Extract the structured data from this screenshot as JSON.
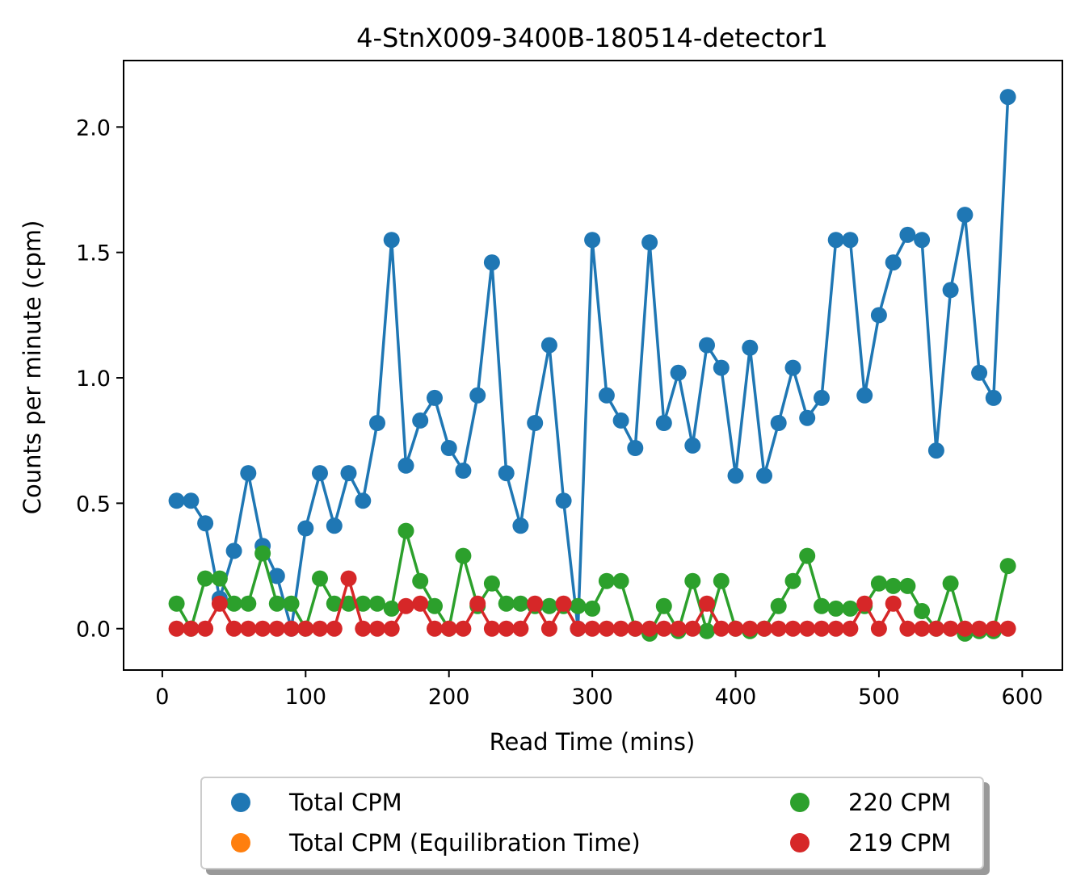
{
  "chart_data": {
    "type": "scatter",
    "title": "4-StnX009-3400B-180514-detector1",
    "xlabel": "Read Time (mins)",
    "ylabel": "Counts per minute (cpm)",
    "xlim": [
      -27,
      628
    ],
    "ylim": [
      -0.165,
      2.265
    ],
    "xticks": [
      "0",
      "100",
      "200",
      "300",
      "400",
      "500",
      "600"
    ],
    "yticks": [
      "0.0",
      "0.5",
      "1.0",
      "1.5",
      "2.0"
    ],
    "grid": false,
    "legend_placement": "below plot, two columns, with shadow",
    "x": [
      10,
      20,
      30,
      40,
      50,
      60,
      70,
      80,
      90,
      100,
      110,
      120,
      130,
      140,
      150,
      160,
      170,
      180,
      190,
      200,
      210,
      220,
      230,
      240,
      250,
      260,
      270,
      280,
      290,
      300,
      310,
      320,
      330,
      340,
      350,
      360,
      370,
      380,
      390,
      400,
      410,
      420,
      430,
      440,
      450,
      460,
      470,
      480,
      490,
      500,
      510,
      520,
      530,
      540,
      550,
      560,
      570,
      580,
      590
    ],
    "series": [
      {
        "name": "Total CPM",
        "color": "#1f77b4",
        "line": true,
        "values": [
          0.51,
          0.51,
          0.42,
          0.12,
          0.31,
          0.62,
          0.33,
          0.21,
          0.0,
          0.4,
          0.62,
          0.41,
          0.62,
          0.51,
          0.82,
          1.55,
          0.65,
          0.83,
          0.92,
          0.72,
          0.63,
          0.93,
          1.46,
          0.62,
          0.41,
          0.82,
          1.13,
          0.51,
          0.0,
          1.55,
          0.93,
          0.83,
          0.72,
          1.54,
          0.82,
          1.02,
          0.73,
          1.13,
          1.04,
          0.61,
          1.12,
          0.61,
          0.82,
          1.04,
          0.84,
          0.92,
          1.55,
          1.55,
          0.93,
          1.25,
          1.46,
          1.57,
          1.55,
          0.71,
          1.35,
          1.65,
          1.02,
          0.92,
          2.12
        ]
      },
      {
        "name": "Total CPM (Equilibration Time)",
        "color": "#ff7f0e",
        "line": false,
        "values": []
      },
      {
        "name": "220 CPM",
        "color": "#2ca02c",
        "line": true,
        "values": [
          0.1,
          0.0,
          0.2,
          0.2,
          0.1,
          0.1,
          0.3,
          0.1,
          0.1,
          0.0,
          0.2,
          0.1,
          0.1,
          0.1,
          0.1,
          0.08,
          0.39,
          0.19,
          0.09,
          0.0,
          0.29,
          0.09,
          0.18,
          0.1,
          0.1,
          0.09,
          0.09,
          0.09,
          0.09,
          0.08,
          0.19,
          0.19,
          0.0,
          -0.02,
          0.09,
          -0.01,
          0.19,
          -0.01,
          0.19,
          0.0,
          -0.01,
          0.0,
          0.09,
          0.19,
          0.29,
          0.09,
          0.08,
          0.08,
          0.09,
          0.18,
          0.17,
          0.17,
          0.07,
          0.0,
          0.18,
          -0.02,
          -0.01,
          -0.01,
          0.25
        ]
      },
      {
        "name": "219 CPM",
        "color": "#d62728",
        "line": true,
        "values": [
          0.0,
          0.0,
          0.0,
          0.1,
          0.0,
          0.0,
          0.0,
          0.0,
          0.0,
          0.0,
          0.0,
          0.0,
          0.2,
          0.0,
          0.0,
          0.0,
          0.09,
          0.1,
          0.0,
          0.0,
          0.0,
          0.1,
          0.0,
          0.0,
          0.0,
          0.1,
          0.0,
          0.1,
          0.0,
          0.0,
          0.0,
          0.0,
          0.0,
          0.0,
          0.0,
          0.0,
          0.0,
          0.1,
          0.0,
          0.0,
          0.0,
          0.0,
          0.0,
          0.0,
          0.0,
          0.0,
          0.0,
          0.0,
          0.1,
          0.0,
          0.1,
          0.0,
          0.0,
          0.0,
          0.0,
          0.0,
          0.0,
          0.0,
          0.0
        ]
      }
    ]
  },
  "legend": {
    "items": [
      {
        "label": "Total CPM",
        "color": "#1f77b4"
      },
      {
        "label": "Total CPM (Equilibration Time)",
        "color": "#ff7f0e"
      },
      {
        "label": "220 CPM",
        "color": "#2ca02c"
      },
      {
        "label": "219 CPM",
        "color": "#d62728"
      }
    ]
  }
}
